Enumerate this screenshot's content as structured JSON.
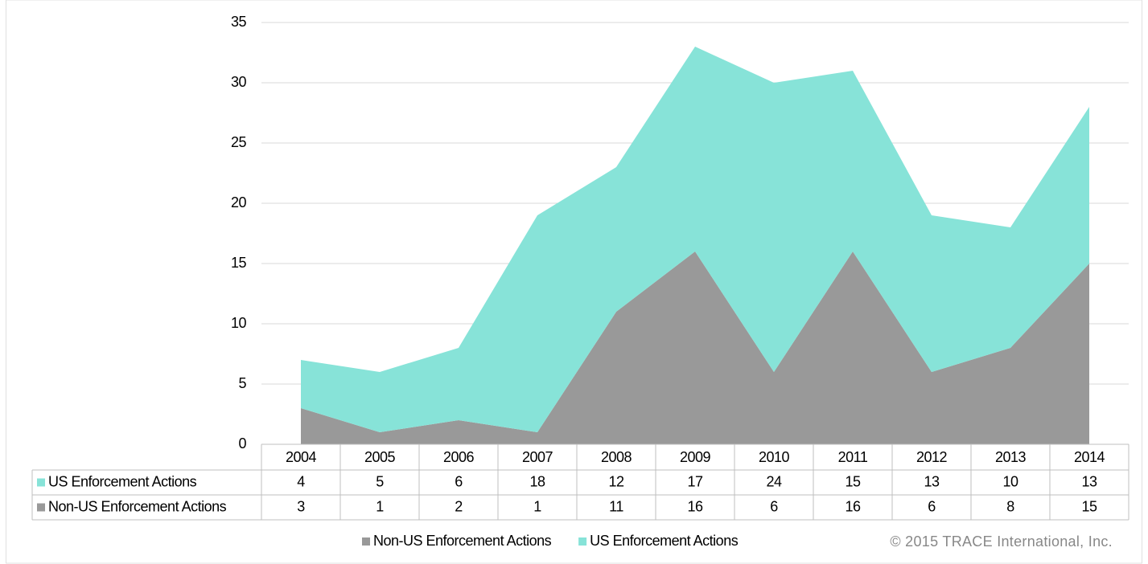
{
  "chart_data": {
    "type": "stacked_area",
    "categories": [
      "2004",
      "2005",
      "2006",
      "2007",
      "2008",
      "2009",
      "2010",
      "2011",
      "2012",
      "2013",
      "2014"
    ],
    "series": [
      {
        "name": "Non-US Enforcement Actions",
        "color": "#999999",
        "values": [
          3,
          1,
          2,
          1,
          11,
          16,
          6,
          16,
          6,
          8,
          15
        ]
      },
      {
        "name": "US Enforcement Actions",
        "color": "#87e3d8",
        "values": [
          4,
          5,
          6,
          18,
          12,
          17,
          24,
          15,
          13,
          10,
          13
        ]
      }
    ],
    "ylim": [
      0,
      35
    ],
    "yticks": [
      0,
      5,
      10,
      15,
      20,
      25,
      30,
      35
    ],
    "grid": true,
    "legend": "bottom",
    "credit": "© 2015 TRACE International, Inc."
  }
}
